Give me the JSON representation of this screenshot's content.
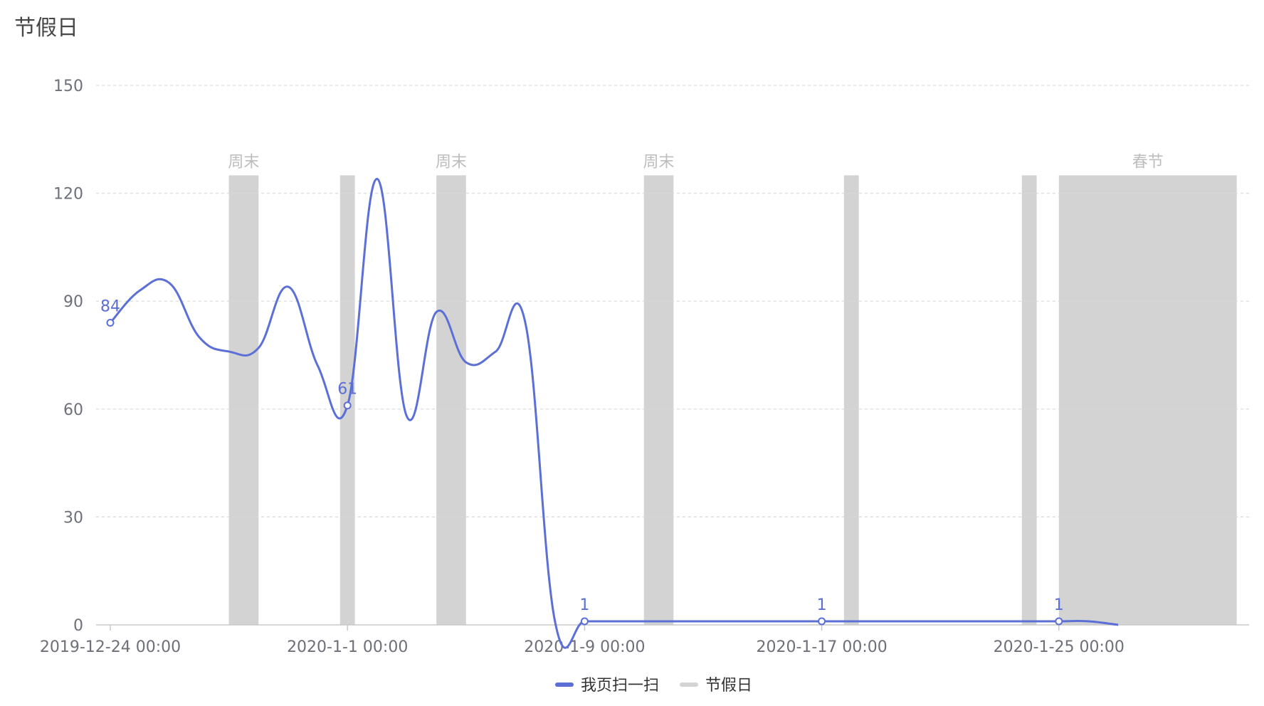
{
  "chart_data": {
    "type": "line",
    "title": "节假日",
    "xlabel": "",
    "ylabel": "",
    "ylim": [
      0,
      150
    ],
    "yticks": [
      0,
      30,
      60,
      90,
      120,
      150
    ],
    "x_range": [
      "2019-12-24",
      "2020-02-01"
    ],
    "x_tick_labels": [
      "2019-12-24 00:00",
      "2020-1-1 00:00",
      "2020-1-9 00:00",
      "2020-1-17 00:00",
      "2020-1-25 00:00"
    ],
    "grid": true,
    "legend_position": "bottom-center",
    "series": [
      {
        "name": "我页扫一扫",
        "color": "#5b6fd6",
        "points": [
          {
            "x": "2019-12-24",
            "y": 84,
            "label": "84"
          },
          {
            "x": "2019-12-25",
            "y": 93
          },
          {
            "x": "2019-12-26",
            "y": 95
          },
          {
            "x": "2019-12-27",
            "y": 80
          },
          {
            "x": "2019-12-28",
            "y": 76
          },
          {
            "x": "2019-12-29",
            "y": 77
          },
          {
            "x": "2019-12-30",
            "y": 94
          },
          {
            "x": "2019-12-31",
            "y": 72
          },
          {
            "x": "2020-01-01",
            "y": 61,
            "label": "61"
          },
          {
            "x": "2020-01-02",
            "y": 124
          },
          {
            "x": "2020-01-03",
            "y": 58
          },
          {
            "x": "2020-01-04",
            "y": 87
          },
          {
            "x": "2020-01-05",
            "y": 73
          },
          {
            "x": "2020-01-06",
            "y": 76
          },
          {
            "x": "2020-01-07",
            "y": 84
          },
          {
            "x": "2020-01-08",
            "y": 1
          },
          {
            "x": "2020-01-09",
            "y": 1,
            "label": "1"
          },
          {
            "x": "2020-01-10",
            "y": 1
          },
          {
            "x": "2020-01-11",
            "y": 1
          },
          {
            "x": "2020-01-12",
            "y": 1
          },
          {
            "x": "2020-01-13",
            "y": 1
          },
          {
            "x": "2020-01-14",
            "y": 1
          },
          {
            "x": "2020-01-15",
            "y": 1
          },
          {
            "x": "2020-01-16",
            "y": 1
          },
          {
            "x": "2020-01-17",
            "y": 1,
            "label": "1"
          },
          {
            "x": "2020-01-18",
            "y": 1
          },
          {
            "x": "2020-01-19",
            "y": 1
          },
          {
            "x": "2020-01-20",
            "y": 1
          },
          {
            "x": "2020-01-21",
            "y": 1
          },
          {
            "x": "2020-01-22",
            "y": 1
          },
          {
            "x": "2020-01-23",
            "y": 1
          },
          {
            "x": "2020-01-24",
            "y": 1
          },
          {
            "x": "2020-01-25",
            "y": 1,
            "label": "1"
          },
          {
            "x": "2020-01-26",
            "y": 1
          },
          {
            "x": "2020-01-27",
            "y": 0
          }
        ]
      },
      {
        "name": "节假日",
        "color": "#d3d3d3",
        "type": "band",
        "top": 125,
        "bands": [
          {
            "start": "2019-12-28",
            "end": "2019-12-29",
            "label": "周末"
          },
          {
            "start": "2019-12-31 18:00",
            "end": "2020-01-01 06:00",
            "label": ""
          },
          {
            "start": "2020-01-04",
            "end": "2020-01-05",
            "label": "周末"
          },
          {
            "start": "2020-01-11",
            "end": "2020-01-12",
            "label": "周末"
          },
          {
            "start": "2020-01-17 18:00",
            "end": "2020-01-18 06:00",
            "label": ""
          },
          {
            "start": "2020-01-23 18:00",
            "end": "2020-01-24 06:00",
            "label": ""
          },
          {
            "start": "2020-01-25",
            "end": "2020-01-31",
            "label": "春节"
          }
        ]
      }
    ]
  }
}
